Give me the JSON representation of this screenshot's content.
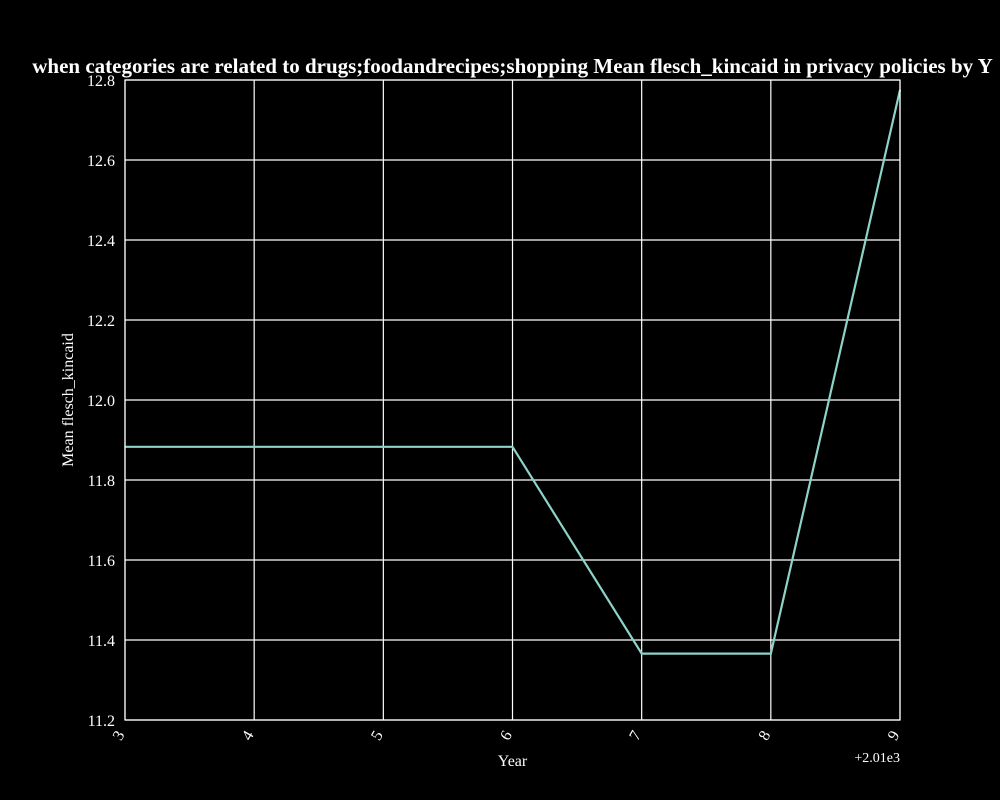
{
  "chart_data": {
    "type": "line",
    "title": "Mean flesch_kincaid in privacy policies by Year when categories are related to drugs;foodandrecipes;shopping",
    "title_display": "when categories are related to drugs;foodandrecipes;shopping Mean flesch_kincaid in privacy policies by Y",
    "xlabel": "Year",
    "ylabel": "Mean flesch_kincaid",
    "x_offset_label": "+2.01e3",
    "x_tick_labels": [
      "3",
      "4",
      "5",
      "6",
      "7",
      "8",
      "9"
    ],
    "y_tick_labels": [
      "11.2",
      "11.4",
      "11.6",
      "11.8",
      "12.0",
      "12.2",
      "12.4",
      "12.6",
      "12.8"
    ],
    "xlim": [
      2013,
      2019
    ],
    "ylim": [
      11.2,
      12.8
    ],
    "x_ticks": [
      2013,
      2014,
      2015,
      2016,
      2017,
      2018,
      2019
    ],
    "y_ticks": [
      11.2,
      11.4,
      11.6,
      11.8,
      12.0,
      12.2,
      12.4,
      12.6,
      12.8
    ],
    "grid": true,
    "series": [
      {
        "x": [
          2013,
          2014,
          2015,
          2016,
          2017,
          2018,
          2019
        ],
        "values": [
          11.883,
          11.883,
          11.883,
          11.883,
          11.366,
          11.366,
          12.775
        ],
        "color": "#8dd3c7"
      }
    ],
    "colors": {
      "background": "#000000",
      "foreground": "#ffffff",
      "line": "#8dd3c7"
    }
  }
}
